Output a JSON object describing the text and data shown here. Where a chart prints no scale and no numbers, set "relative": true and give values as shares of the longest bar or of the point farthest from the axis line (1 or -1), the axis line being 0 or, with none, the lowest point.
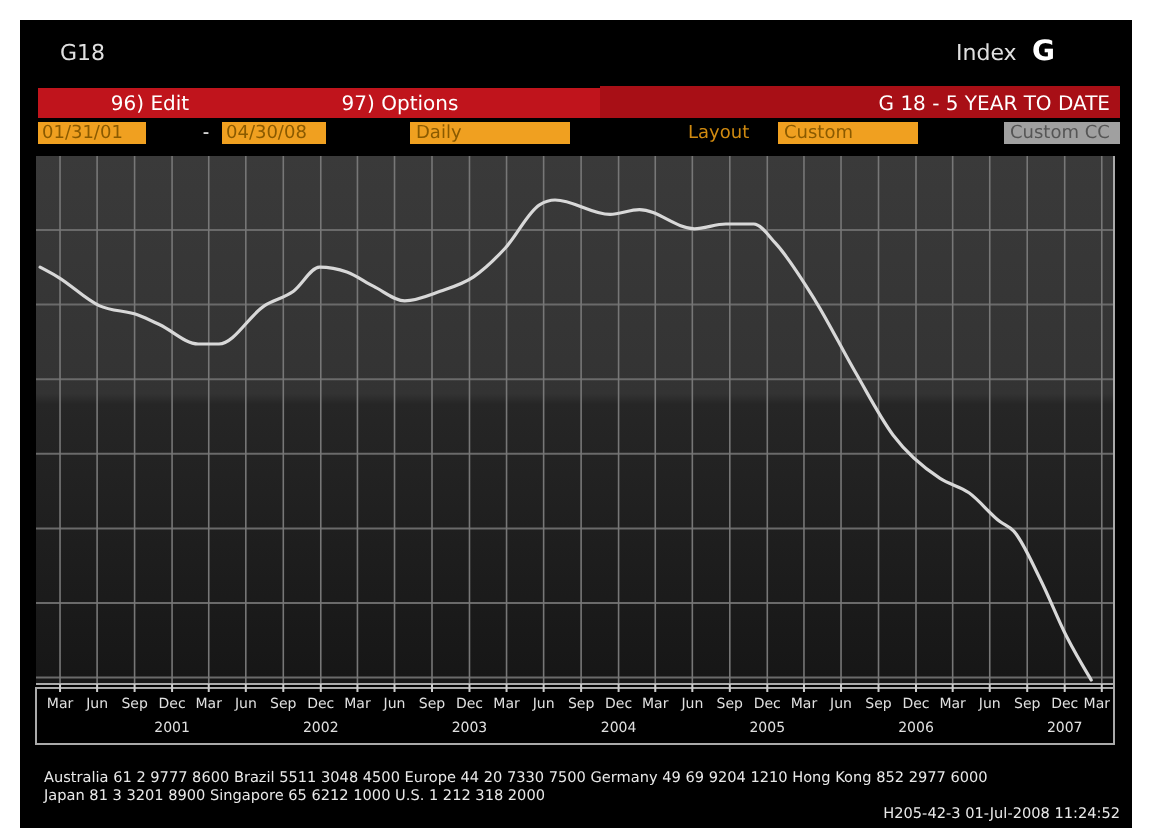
{
  "chart_data": {
    "type": "line",
    "title": "G 18 - 5 YEAR TO DATE",
    "relative": true,
    "grid": true,
    "xlim": [
      "2001-01-31",
      "2008-04-30"
    ],
    "xticks": [
      {
        "value": "2001-03-31",
        "label": "Mar"
      },
      {
        "value": "2001-06-30",
        "label": "Jun"
      },
      {
        "value": "2001-09-30",
        "label": "Sep"
      },
      {
        "value": "2001-12-31",
        "label": "Dec\n2001"
      },
      {
        "value": "2002-03-31",
        "label": "Mar"
      },
      {
        "value": "2002-06-30",
        "label": "Jun"
      },
      {
        "value": "2002-09-30",
        "label": "Sep"
      },
      {
        "value": "2002-12-31",
        "label": "Dec\n2002"
      },
      {
        "value": "2003-03-31",
        "label": "Mar"
      },
      {
        "value": "2003-06-30",
        "label": "Jun"
      },
      {
        "value": "2003-09-30",
        "label": "Sep"
      },
      {
        "value": "2003-12-31",
        "label": "Dec\n2003"
      },
      {
        "value": "2004-03-31",
        "label": "Mar"
      },
      {
        "value": "2004-06-30",
        "label": "Jun"
      },
      {
        "value": "2004-09-30",
        "label": "Sep"
      },
      {
        "value": "2004-12-31",
        "label": "Dec\n2004"
      },
      {
        "value": "2005-03-31",
        "label": "Mar"
      },
      {
        "value": "2005-06-30",
        "label": "Jun"
      },
      {
        "value": "2005-09-30",
        "label": "Sep"
      },
      {
        "value": "2005-12-31",
        "label": "Dec\n2005"
      },
      {
        "value": "2006-03-31",
        "label": "Mar"
      },
      {
        "value": "2006-06-30",
        "label": "Jun"
      },
      {
        "value": "2006-09-30",
        "label": "Sep"
      },
      {
        "value": "2006-12-31",
        "label": "Dec\n2006"
      },
      {
        "value": "2007-03-31",
        "label": "Mar"
      },
      {
        "value": "2007-06-30",
        "label": "Jun"
      },
      {
        "value": "2007-09-30",
        "label": "Sep"
      },
      {
        "value": "2007-12-31",
        "label": "Dec\n2007"
      },
      {
        "value": "2008-03-31",
        "label": "Mar"
      }
    ],
    "annotations": [
      "G18",
      "Index",
      "G",
      "96) Edit",
      "97) Options",
      "01/31/01",
      "-",
      "04/30/08",
      "Daily",
      "Layout",
      "Custom",
      "Custom CC",
      "Australia 61 2 9777 8600 Brazil 5511 3048 4500 Europe 44 20 7330 7500 Germany 49 69 9204 1210 Hong Kong 852 2977 6000",
      "Japan 81 3 3201 8900     Singapore 65 6212 1000     U.S. 1 212 318 2000",
      "H205-42-3 01-Jul-2008 11:24:52"
    ],
    "series": [
      {
        "color": "#d8d8d8",
        "x": [
          "2001-02-10",
          "2001-03-25",
          "2001-07-05",
          "2001-10-10",
          "2001-12-01",
          "2002-03-05",
          "2002-04-25",
          "2002-08-15",
          "2002-10-25",
          "2002-12-28",
          "2003-03-05",
          "2003-05-10",
          "2003-07-25",
          "2003-10-20",
          "2004-01-10",
          "2004-03-28",
          "2004-06-20",
          "2004-07-28",
          "2004-12-10",
          "2005-02-20",
          "2005-07-05",
          "2005-09-20",
          "2005-11-28",
          "2006-01-20",
          "2006-04-28",
          "2006-08-05",
          "2006-11-05",
          "2007-02-28",
          "2007-05-10",
          "2007-07-25",
          "2007-08-28",
          "2007-11-01",
          "2008-01-05",
          "2008-03-05"
        ],
        "values": [
          0.86,
          0.84,
          0.78,
          0.76,
          0.74,
          0.7,
          0.7,
          0.78,
          0.81,
          0.86,
          0.85,
          0.82,
          0.79,
          0.81,
          0.84,
          0.9,
          0.99,
          1,
          0.97,
          0.98,
          0.94,
          0.95,
          0.95,
          0.91,
          0.79,
          0.64,
          0.51,
          0.42,
          0.39,
          0.33,
          0.31,
          0.21,
          0.09,
          0
        ]
      }
    ]
  }
}
